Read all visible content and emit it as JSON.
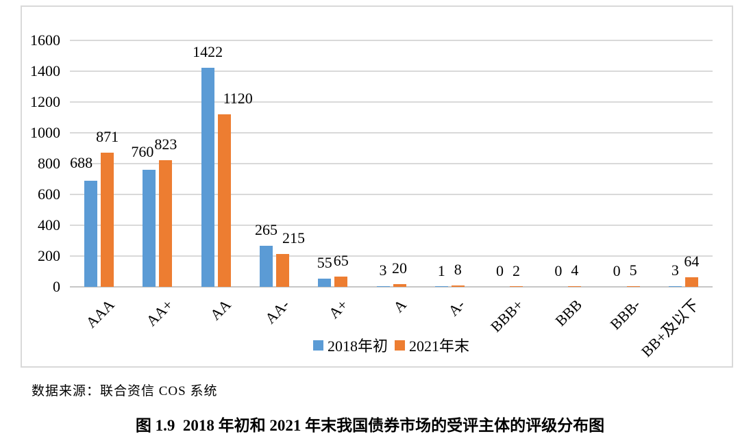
{
  "chart_data": {
    "type": "bar",
    "title": "",
    "categories": [
      "AAA",
      "AA+",
      "AA",
      "AA-",
      "A+",
      "A",
      "A-",
      "BBB+",
      "BBB",
      "BBB-",
      "BB+及以下"
    ],
    "series": [
      {
        "name": "2018年初",
        "color": "#5B9BD5",
        "values": [
          688,
          760,
          1422,
          265,
          55,
          3,
          1,
          0,
          0,
          0,
          3
        ]
      },
      {
        "name": "2021年末",
        "color": "#ED7D31",
        "values": [
          871,
          823,
          1120,
          215,
          65,
          20,
          8,
          2,
          4,
          5,
          64
        ]
      }
    ],
    "xlabel": "",
    "ylabel": "",
    "ylim": [
      0,
      1600
    ],
    "ytick_step": 200,
    "yticks": [
      0,
      200,
      400,
      600,
      800,
      1000,
      1200,
      1400,
      1600
    ],
    "grid": true,
    "data_labels": true,
    "legend_position": "bottom-center"
  },
  "colors": {
    "series_2018": "#5B9BD5",
    "series_2021": "#ED7D31",
    "gridline": "#D9D9D9",
    "axis_line": "#C6C6C6",
    "frame_border": "#D9D9D9",
    "text": "#000000"
  },
  "source_note": "数据来源：联合资信 COS 系统",
  "caption": "图 1.9  2018 年初和 2021 年末我国债券市场的受评主体的评级分布图"
}
